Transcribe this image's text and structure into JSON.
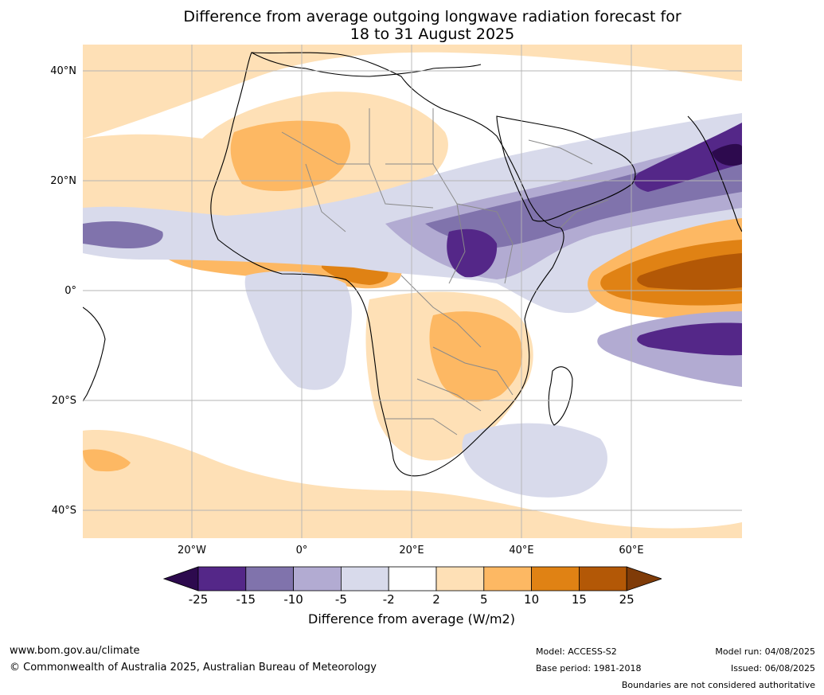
{
  "title": {
    "line1": "Difference from average outgoing longwave radiation forecast for",
    "line2": "18 to 31 August 2025"
  },
  "map": {
    "lat_labels": [
      "40°N",
      "20°N",
      "0°",
      "20°S",
      "40°S"
    ],
    "lon_labels": [
      "20°W",
      "0°",
      "20°E",
      "40°E",
      "60°E"
    ]
  },
  "colorbar": {
    "ticks": [
      "-25",
      "-15",
      "-10",
      "-5",
      "-2",
      "2",
      "5",
      "10",
      "15",
      "25"
    ],
    "colors": [
      "#2d0a4e",
      "#542788",
      "#8073ac",
      "#b2abd2",
      "#d8daeb",
      "#ffffff",
      "#fee0b6",
      "#fdb863",
      "#e08214",
      "#b35806",
      "#7f3b08"
    ],
    "label": "Difference from average (W/m2)"
  },
  "footer": {
    "website": "www.bom.gov.au/climate",
    "copyright": "© Commonwealth of Australia 2025, Australian Bureau of Meteorology",
    "model": "Model: ACCESS-S2",
    "base_period": "Base period: 1981-2018",
    "model_run": "Model run: 04/08/2025",
    "issued": "Issued: 06/08/2025",
    "disclaimer": "Boundaries are not considered authoritative"
  }
}
